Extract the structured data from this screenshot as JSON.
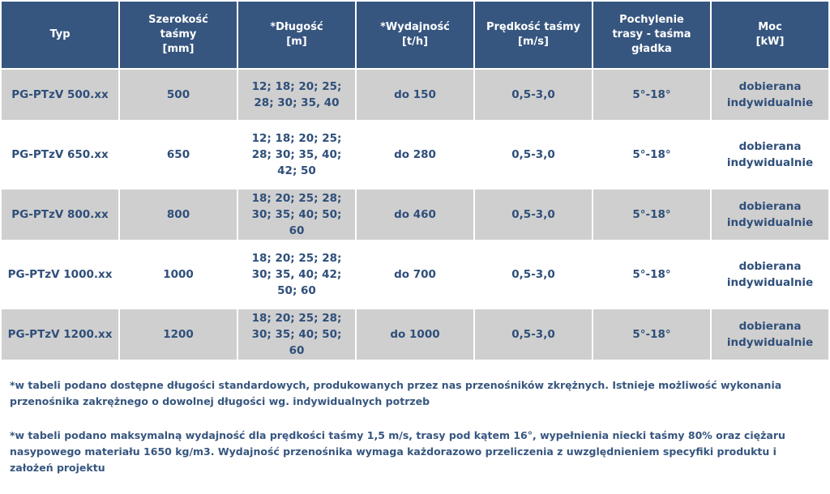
{
  "table": {
    "headers": [
      "Typ",
      "Szerokość\ntaśmy\n[mm]",
      "*Długość\n[m]",
      "*Wydajność\n[t/h]",
      "Prędkość taśmy\n[m/s]",
      "Pochylenie\ntrasy - taśma\ngładka",
      "Moc\n[kW]"
    ],
    "rows": [
      [
        "PG-PTzV 500.xx",
        "500",
        "12; 18; 20; 25;\n28; 30; 35, 40",
        "do 150",
        "0,5-3,0",
        "5°-18°",
        "dobierana\nindywidualnie"
      ],
      [
        "PG-PTzV 650.xx",
        "650",
        "12; 18; 20; 25;\n28; 30; 35, 40;\n42; 50",
        "do 280",
        "0,5-3,0",
        "5°-18°",
        "dobierana\nindywidualnie"
      ],
      [
        "PG-PTzV 800.xx",
        "800",
        "18; 20; 25; 28;\n30; 35; 40; 50; 60",
        "do 460",
        "0,5-3,0",
        "5°-18°",
        "dobierana\nindywidualnie"
      ],
      [
        "PG-PTzV 1000.xx",
        "1000",
        "18; 20; 25; 28;\n30; 35, 40; 42;\n50; 60",
        "do 700",
        "0,5-3,0",
        "5°-18°",
        "dobierana\nindywidualnie"
      ],
      [
        "PG-PTzV 1200.xx",
        "1200",
        "18; 20; 25; 28;\n30; 35; 40; 50; 60",
        "do 1000",
        "0,5-3,0",
        "5°-18°",
        "dobierana\nindywidualnie"
      ]
    ]
  },
  "notes": [
    "*w tabeli podano dostępne długości standardowych, produkowanych przez nas przenośników zkrężnych. Istnieje możliwość wykonania przenośnika zakrężnego o dowolnej długości wg. indywidualnych potrzeb",
    "*w tabeli podano maksymalną wydajność dla prędkości taśmy 1,5 m/s, trasy pod kątem 16°, wypełnienia niecki taśmy 80% oraz ciężaru nasypowego materiału 1650 kg/m3. Wydajność przenośnika wymaga każdorazowo przeliczenia z uwzględnieniem specyfiki produktu i założeń projektu"
  ],
  "colors": {
    "header_bg": "#36567f",
    "row_shaded": "#cfcfcf",
    "text": "#2f4f7a"
  }
}
